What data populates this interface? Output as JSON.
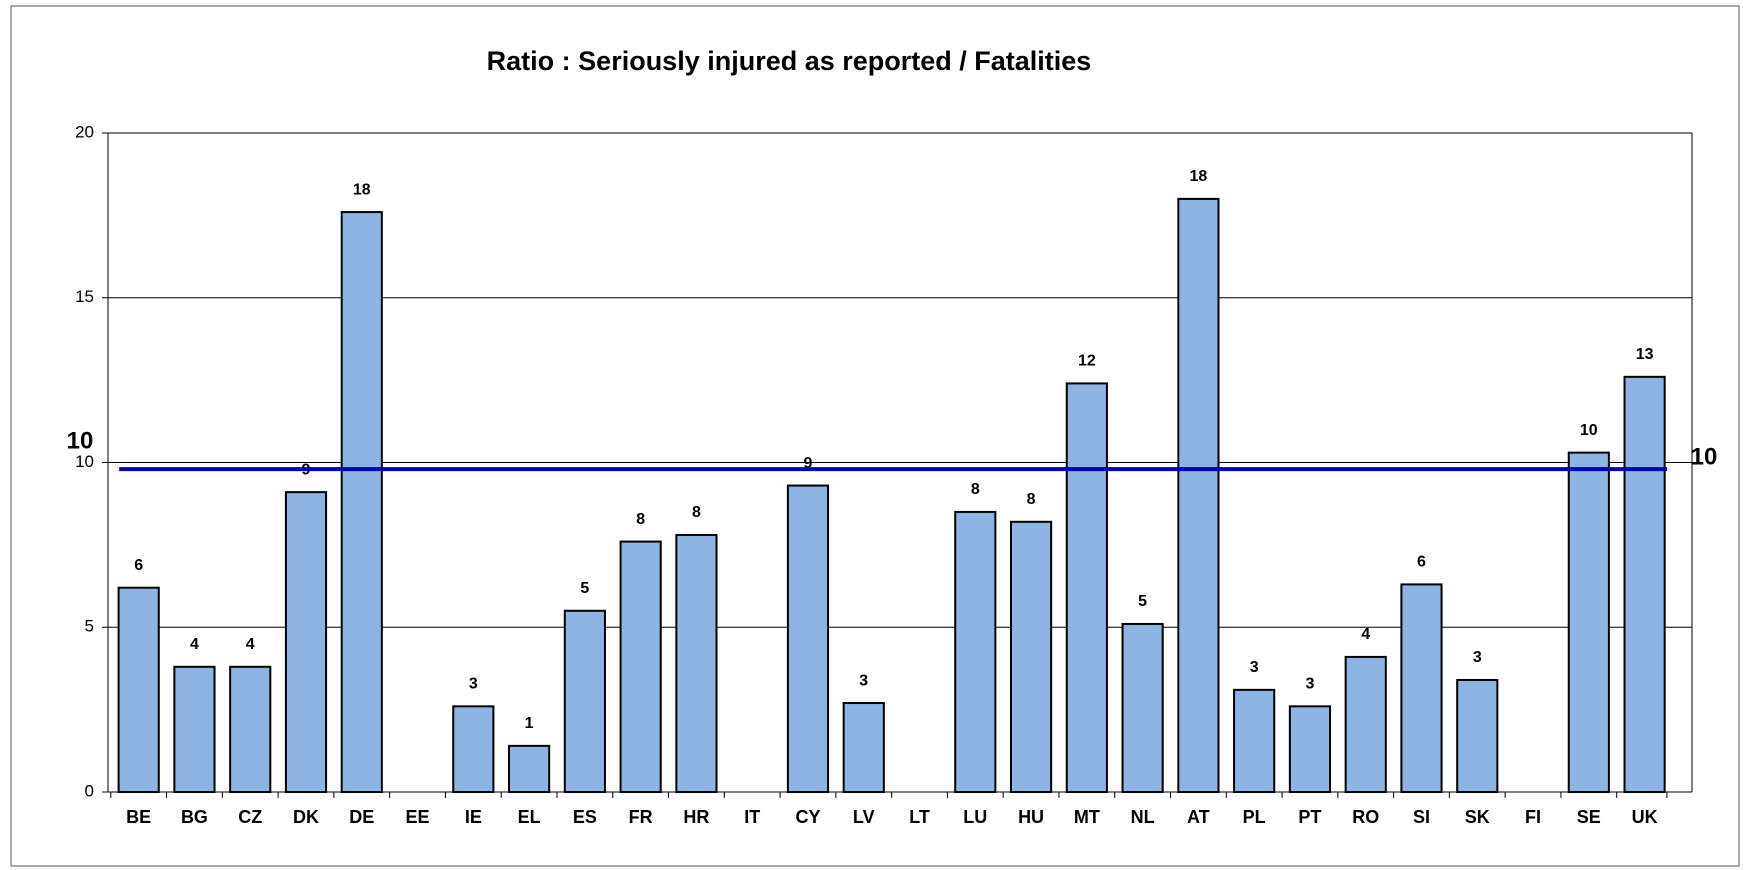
{
  "chart_data": {
    "type": "bar",
    "title": "Ratio : Seriously injured as reported / Fatalities",
    "categories": [
      "BE",
      "BG",
      "CZ",
      "DK",
      "DE",
      "EE",
      "IE",
      "EL",
      "ES",
      "FR",
      "HR",
      "IT",
      "CY",
      "LV",
      "LT",
      "LU",
      "HU",
      "MT",
      "NL",
      "AT",
      "PL",
      "PT",
      "RO",
      "SI",
      "SK",
      "FI",
      "SE",
      "UK"
    ],
    "values": [
      6.2,
      3.8,
      3.8,
      9.1,
      17.6,
      null,
      2.6,
      1.4,
      5.5,
      7.6,
      7.8,
      null,
      9.3,
      2.7,
      null,
      8.5,
      8.2,
      12.4,
      5.1,
      18.0,
      3.1,
      2.6,
      4.1,
      6.3,
      3.4,
      null,
      10.3,
      12.6
    ],
    "value_labels": [
      "6",
      "4",
      "4",
      "9",
      "18",
      null,
      "3",
      "1",
      "5",
      "8",
      "8",
      null,
      "9",
      "3",
      null,
      "8",
      "8",
      "12",
      "5",
      "18",
      "3",
      "3",
      "4",
      "6",
      "3",
      null,
      "10",
      "13"
    ],
    "color": "#8db4e2",
    "ylim": [
      0,
      20
    ],
    "yticks": [
      0,
      5,
      10,
      15,
      20
    ],
    "grid": true,
    "reference_line": {
      "value": 9.8,
      "label": "10",
      "color": "#0000b0"
    }
  }
}
